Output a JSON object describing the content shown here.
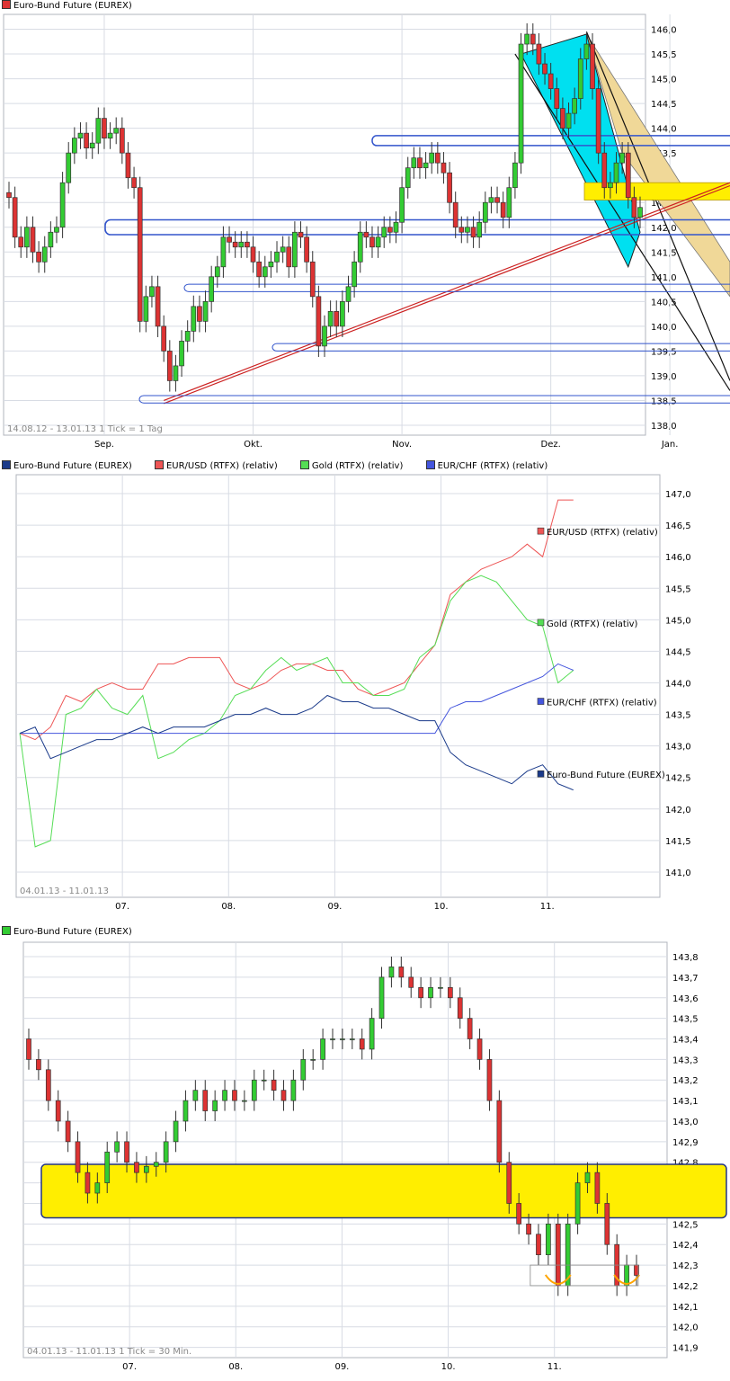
{
  "colors": {
    "up": "#33cc33",
    "down": "#dd3333",
    "grid": "#d8dce4",
    "cyan": "#00e0f0",
    "tan": "#f0d898",
    "yellow": "#ffee00",
    "blue_line": "#3355cc",
    "red_line": "#cc2222",
    "orange": "#ffa500"
  },
  "chart_data": [
    {
      "type": "candlestick",
      "legend": [
        {
          "name": "Euro-Bund Future (EUREX)",
          "color": "#dd3333"
        }
      ],
      "range_label": "14.08.12 - 13.01.13",
      "tick_label": "1 Tick = 1 Tag",
      "x_ticks": [
        {
          "label": "Sep.",
          "at": 16
        },
        {
          "label": "Okt.",
          "at": 41
        },
        {
          "label": "Nov.",
          "at": 66
        },
        {
          "label": "Dez.",
          "at": 91
        },
        {
          "label": "Jan.",
          "at": 111
        }
      ],
      "y_ticks": [
        "138,0",
        "138,5",
        "139,0",
        "139,5",
        "140,0",
        "140,5",
        "141,0",
        "141,5",
        "142,0",
        "142,5",
        "143,0",
        "143,5",
        "144,0",
        "144,5",
        "145,0",
        "145,5",
        "146,0"
      ],
      "ylim": [
        137.8,
        146.3
      ],
      "closes": [
        142.6,
        141.8,
        141.6,
        142.0,
        141.5,
        141.3,
        141.6,
        141.9,
        142.0,
        142.9,
        143.5,
        143.8,
        143.9,
        143.6,
        143.7,
        144.2,
        143.8,
        143.9,
        144.0,
        143.5,
        143.0,
        142.8,
        140.1,
        140.6,
        140.8,
        140.0,
        139.5,
        138.9,
        139.2,
        139.7,
        139.9,
        140.4,
        140.1,
        140.5,
        141.0,
        141.2,
        141.8,
        141.7,
        141.6,
        141.7,
        141.6,
        141.3,
        141.0,
        141.2,
        141.3,
        141.5,
        141.6,
        141.2,
        141.9,
        141.8,
        141.3,
        140.6,
        139.6,
        140.0,
        140.3,
        140.0,
        140.5,
        140.8,
        141.3,
        141.9,
        141.8,
        141.6,
        141.8,
        142.0,
        141.9,
        142.1,
        142.8,
        143.2,
        143.4,
        143.2,
        143.3,
        143.5,
        143.3,
        143.1,
        142.5,
        142.0,
        141.9,
        142.0,
        141.8,
        142.1,
        142.5,
        142.6,
        142.5,
        142.2,
        142.8,
        143.3,
        145.7,
        145.9,
        145.7,
        145.3,
        145.1,
        144.8,
        144.4,
        144.0,
        144.3,
        144.6,
        145.4,
        145.7,
        144.8,
        143.5,
        142.8,
        142.9,
        143.3,
        143.5,
        142.6,
        142.2,
        142.4
      ],
      "annotations": [
        "cyan-channel",
        "tan-channel",
        "yellow-box",
        "blue-horizontal-lines",
        "red-trendline"
      ]
    },
    {
      "type": "line",
      "legend": [
        {
          "name": "Euro-Bund Future (EUREX)",
          "color": "#1a3a8a"
        },
        {
          "name": "EUR/USD (RTFX) (relativ)",
          "color": "#ee5555"
        },
        {
          "name": "Gold (RTFX) (relativ)",
          "color": "#55dd55"
        },
        {
          "name": "EUR/CHF (RTFX) (relativ)",
          "color": "#4455dd"
        }
      ],
      "end_labels": [
        {
          "text": "EUR/USD (RTFX) (relativ)",
          "color": "#ee5555",
          "y": 146.4
        },
        {
          "text": "Gold (RTFX) (relativ)",
          "color": "#55dd55",
          "y": 144.95
        },
        {
          "text": "EUR/CHF (RTFX) (relativ)",
          "color": "#4455dd",
          "y": 143.7
        },
        {
          "text": "Euro-Bund Future (EUREX)",
          "color": "#1a3a8a",
          "y": 142.55
        }
      ],
      "range_label": "04.01.13 - 11.01.13",
      "x_ticks": [
        {
          "label": "07.",
          "at": 0.165
        },
        {
          "label": "08.",
          "at": 0.33
        },
        {
          "label": "09.",
          "at": 0.495
        },
        {
          "label": "10.",
          "at": 0.66
        },
        {
          "label": "11.",
          "at": 0.825
        }
      ],
      "y_ticks": [
        "141,0",
        "141,5",
        "142,0",
        "142,5",
        "143,0",
        "143,5",
        "144,0",
        "144,5",
        "145,0",
        "145,5",
        "146,0",
        "146,5",
        "147,0"
      ],
      "ylim": [
        140.6,
        147.3
      ],
      "series": [
        {
          "name": "EUR/USD (RTFX) (relativ)",
          "color": "#ee5555",
          "values": [
            143.2,
            143.1,
            143.3,
            143.8,
            143.7,
            143.9,
            144.0,
            143.9,
            143.9,
            144.3,
            144.3,
            144.4,
            144.4,
            144.4,
            144.0,
            143.9,
            144.0,
            144.2,
            144.3,
            144.3,
            144.2,
            144.2,
            143.9,
            143.8,
            143.9,
            144.0,
            144.3,
            144.6,
            145.4,
            145.6,
            145.8,
            145.9,
            146.0,
            146.2,
            146.0,
            146.9,
            146.9
          ]
        },
        {
          "name": "Gold (RTFX) (relativ)",
          "color": "#55dd55",
          "values": [
            143.2,
            141.4,
            141.5,
            143.5,
            143.6,
            143.9,
            143.6,
            143.5,
            143.8,
            142.8,
            142.9,
            143.1,
            143.2,
            143.4,
            143.8,
            143.9,
            144.2,
            144.4,
            144.2,
            144.3,
            144.4,
            144.0,
            144.0,
            143.8,
            143.8,
            143.9,
            144.4,
            144.6,
            145.3,
            145.6,
            145.7,
            145.6,
            145.3,
            145.0,
            144.9,
            144.0,
            144.2
          ]
        },
        {
          "name": "EUR/CHF (RTFX) (relativ)",
          "color": "#4455dd",
          "values": [
            143.2,
            143.2,
            143.2,
            143.2,
            143.2,
            143.2,
            143.2,
            143.2,
            143.2,
            143.2,
            143.2,
            143.2,
            143.2,
            143.2,
            143.2,
            143.2,
            143.2,
            143.2,
            143.2,
            143.2,
            143.2,
            143.2,
            143.2,
            143.2,
            143.2,
            143.2,
            143.2,
            143.2,
            143.6,
            143.7,
            143.7,
            143.8,
            143.9,
            144.0,
            144.1,
            144.3,
            144.2
          ]
        },
        {
          "name": "Euro-Bund Future (EUREX)",
          "color": "#1a3a8a",
          "values": [
            143.2,
            143.3,
            142.8,
            142.9,
            143.0,
            143.1,
            143.1,
            143.2,
            143.3,
            143.2,
            143.3,
            143.3,
            143.3,
            143.4,
            143.5,
            143.5,
            143.6,
            143.5,
            143.5,
            143.6,
            143.8,
            143.7,
            143.7,
            143.6,
            143.6,
            143.5,
            143.4,
            143.4,
            142.9,
            142.7,
            142.6,
            142.5,
            142.4,
            142.6,
            142.7,
            142.4,
            142.3
          ]
        }
      ]
    },
    {
      "type": "candlestick",
      "legend": [
        {
          "name": "Euro-Bund Future (EUREX)",
          "color": "#33cc33"
        }
      ],
      "range_label": "04.01.13 - 11.01.13",
      "tick_label": "1 Tick = 30 Min.",
      "x_ticks": [
        {
          "label": "07.",
          "at": 0.165
        },
        {
          "label": "08.",
          "at": 0.33
        },
        {
          "label": "09.",
          "at": 0.495
        },
        {
          "label": "10.",
          "at": 0.66
        },
        {
          "label": "11.",
          "at": 0.825
        }
      ],
      "y_ticks": [
        "141,9",
        "142,0",
        "142,1",
        "142,2",
        "142,3",
        "142,4",
        "142,5",
        "142,6",
        "142,7",
        "142,8",
        "142,9",
        "143,0",
        "143,1",
        "143,2",
        "143,3",
        "143,4",
        "143,5",
        "143,6",
        "143,7",
        "143,8"
      ],
      "ylim": [
        141.85,
        143.87
      ],
      "support_zone": [
        142.53,
        142.79
      ],
      "closes": [
        143.3,
        143.25,
        143.1,
        143.0,
        142.9,
        142.75,
        142.65,
        142.7,
        142.85,
        142.9,
        142.8,
        142.75,
        142.78,
        142.8,
        142.9,
        143.0,
        143.1,
        143.15,
        143.05,
        143.1,
        143.15,
        143.1,
        143.1,
        143.2,
        143.2,
        143.15,
        143.1,
        143.2,
        143.3,
        143.3,
        143.4,
        143.4,
        143.4,
        143.4,
        143.35,
        143.5,
        143.7,
        143.75,
        143.7,
        143.65,
        143.6,
        143.65,
        143.65,
        143.6,
        143.5,
        143.4,
        143.3,
        143.1,
        142.8,
        142.6,
        142.5,
        142.45,
        142.35,
        142.5,
        142.2,
        142.5,
        142.7,
        142.75,
        142.6,
        142.4,
        142.2,
        142.3,
        142.25
      ]
    }
  ]
}
